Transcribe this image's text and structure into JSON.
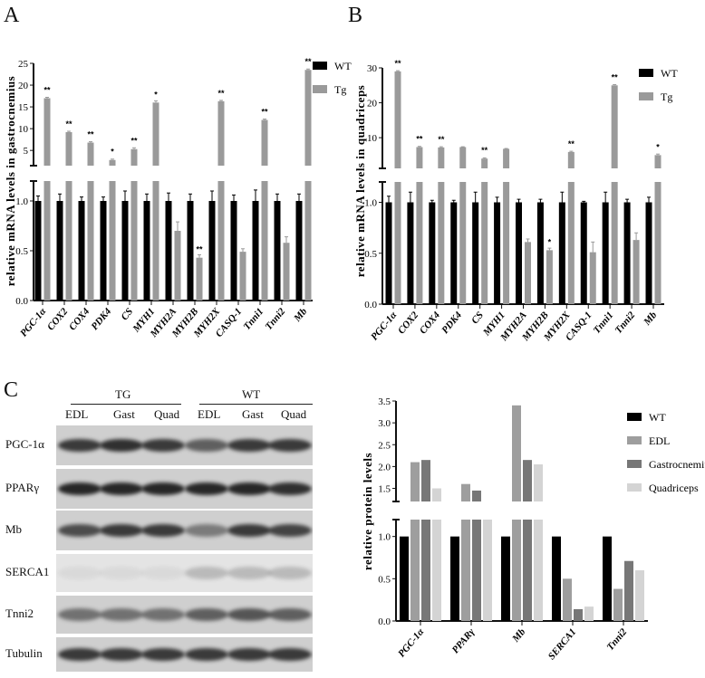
{
  "panels": {
    "a": "A",
    "b": "B",
    "c": "C"
  },
  "blot": {
    "groups": [
      "TG",
      "WT"
    ],
    "lanes": [
      "EDL",
      "Gast",
      "Quad",
      "EDL",
      "Gast",
      "Quad"
    ],
    "rows": [
      "PGC-1α",
      "PPARγ",
      "Mb",
      "SERCA1",
      "Tnni2",
      "Tubulin"
    ]
  },
  "colors": {
    "wt": "#000000",
    "tg": "#9a9a9a",
    "edl": "#9e9e9e",
    "gastrocnemius": "#777777",
    "quadriceps": "#d4d4d4"
  },
  "chart_data": [
    {
      "type": "bar",
      "panel": "A",
      "ylabel": "relative mRNA levels in gastrocnemius",
      "broken_axis": true,
      "lower_ticks": [
        "0.0",
        "0.5",
        "1.0"
      ],
      "upper_ticks": [
        "5",
        "10",
        "15",
        "20",
        "25"
      ],
      "categories": [
        "PGC-1α",
        "COX2",
        "COX4",
        "PDK4",
        "CS",
        "MYH1",
        "MYH2A",
        "MYH2B",
        "MYH2X",
        "CASQ-1",
        "Tnni1",
        "Tnni2",
        "Mb"
      ],
      "series": [
        {
          "name": "WT",
          "values": [
            1,
            1,
            1,
            1,
            1,
            1,
            1,
            1,
            1,
            1,
            1,
            1,
            1
          ],
          "errors": [
            0.05,
            0.07,
            0.04,
            0.04,
            0.1,
            0.07,
            0.08,
            0.07,
            0.1,
            0.06,
            0.11,
            0.07,
            0.07
          ]
        },
        {
          "name": "Tg",
          "values": [
            17,
            9.2,
            6.8,
            2.8,
            5.3,
            16,
            0.7,
            0.43,
            16.3,
            0.49,
            12,
            0.58,
            23.5
          ],
          "errors": [
            0.2,
            0.2,
            0.2,
            0.2,
            0.3,
            0.4,
            0.09,
            0.03,
            0.2,
            0.03,
            0.2,
            0.06,
            0.2
          ]
        }
      ],
      "significance": [
        "**",
        "**",
        "**",
        "*",
        "**",
        "*",
        "",
        "**",
        "**",
        "",
        "**",
        "",
        "**"
      ]
    },
    {
      "type": "bar",
      "panel": "B",
      "ylabel": "relative mRNA levels in quadriceps",
      "broken_axis": true,
      "lower_ticks": [
        "0.0",
        "0.5",
        "1.0"
      ],
      "upper_ticks": [
        "10",
        "20",
        "30"
      ],
      "categories": [
        "PGC-1α",
        "COX2",
        "COX4",
        "PDK4",
        "CS",
        "MYH1",
        "MYH2A",
        "MYH2B",
        "MYH2X",
        "CASQ-1",
        "Tnni1",
        "Tnni2",
        "Mb"
      ],
      "series": [
        {
          "name": "WT",
          "values": [
            1,
            1,
            1,
            1,
            1,
            1,
            1,
            1,
            1,
            1,
            1,
            1,
            1
          ],
          "errors": [
            0.06,
            0.1,
            0.02,
            0.02,
            0.1,
            0.05,
            0.03,
            0.03,
            0.1,
            0.01,
            0.1,
            0.03,
            0.05
          ]
        },
        {
          "name": "Tg",
          "values": [
            29,
            7.3,
            7.2,
            7.3,
            4.0,
            6.8,
            0.61,
            0.53,
            5.9,
            0.51,
            25,
            0.63,
            5.0
          ],
          "errors": [
            0.2,
            0.2,
            0.2,
            0.1,
            0.2,
            0.1,
            0.03,
            0.02,
            0.2,
            0.1,
            0.2,
            0.07,
            0.3
          ]
        }
      ],
      "significance": [
        "**",
        "**",
        "**",
        "",
        "**",
        "",
        "",
        "*",
        "**",
        "",
        "**",
        "",
        "*"
      ]
    },
    {
      "type": "bar",
      "panel": "C",
      "ylabel": "relative protein levels",
      "broken_axis": true,
      "lower_ticks": [
        "0.0",
        "0.5",
        "1.0"
      ],
      "upper_ticks": [
        "1.5",
        "2.0",
        "2.5",
        "3.0",
        "3.5"
      ],
      "categories": [
        "PGC-1α",
        "PPARγ",
        "Mb",
        "SERCA1",
        "Tnni2"
      ],
      "series": [
        {
          "name": "WT",
          "values": [
            1,
            1,
            1,
            1,
            1
          ]
        },
        {
          "name": "EDL",
          "values": [
            2.1,
            1.6,
            3.4,
            0.5,
            0.38
          ]
        },
        {
          "name": "Gastrocnemius",
          "values": [
            2.15,
            1.45,
            2.15,
            0.14,
            0.71
          ]
        },
        {
          "name": "Quadriceps",
          "values": [
            1.5,
            1.2,
            2.05,
            0.17,
            0.6
          ]
        }
      ]
    }
  ]
}
